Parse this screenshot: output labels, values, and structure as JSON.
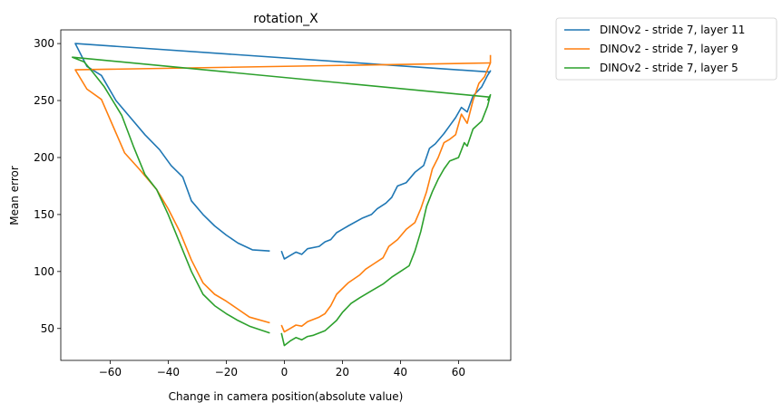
{
  "chart_data": {
    "type": "line",
    "title": "rotation_X",
    "xlabel": "Change in camera position(absolute value)",
    "ylabel": "Mean error",
    "xlim": [
      -77,
      78
    ],
    "ylim": [
      22,
      312
    ],
    "xticks": [
      -60,
      -40,
      -20,
      0,
      20,
      40,
      60
    ],
    "xtick_labels": [
      "−60",
      "−40",
      "−20",
      "0",
      "20",
      "40",
      "60"
    ],
    "yticks": [
      50,
      100,
      150,
      200,
      250,
      300
    ],
    "ytick_labels": [
      "50",
      "100",
      "150",
      "200",
      "250",
      "300"
    ],
    "grid": false,
    "legend_position": "outside-top-right",
    "series": [
      {
        "name": "DINOv2 - stride 7, layer 11",
        "color": "#1f77b4",
        "segments": [
          [
            [
              71,
              275
            ],
            [
              -72,
              300
            ],
            [
              -68,
              280
            ],
            [
              -63,
              272
            ],
            [
              -58,
              250
            ],
            [
              -53,
              235
            ],
            [
              -48,
              220
            ],
            [
              -43,
              207
            ],
            [
              -39,
              193
            ],
            [
              -35,
              183
            ],
            [
              -32,
              162
            ],
            [
              -28,
              150
            ],
            [
              -24,
              140
            ],
            [
              -20,
              132
            ],
            [
              -16,
              125
            ],
            [
              -11,
              119
            ],
            [
              -5,
              118
            ]
          ],
          [
            [
              -1,
              118
            ],
            [
              0,
              111
            ],
            [
              2,
              114
            ],
            [
              4,
              117
            ],
            [
              6,
              115
            ],
            [
              8,
              120
            ],
            [
              12,
              122
            ],
            [
              14,
              126
            ],
            [
              16,
              128
            ],
            [
              18,
              134
            ],
            [
              22,
              140
            ],
            [
              27,
              147
            ],
            [
              30,
              150
            ],
            [
              32,
              155
            ],
            [
              35,
              160
            ],
            [
              37,
              165
            ],
            [
              39,
              175
            ],
            [
              42,
              178
            ],
            [
              45,
              187
            ],
            [
              48,
              193
            ],
            [
              50,
              208
            ],
            [
              52,
              212
            ],
            [
              55,
              221
            ],
            [
              57,
              228
            ],
            [
              59,
              235
            ],
            [
              61,
              244
            ],
            [
              63,
              240
            ],
            [
              65,
              254
            ],
            [
              68,
              262
            ],
            [
              70,
              272
            ],
            [
              71,
              276
            ],
            [
              70,
              272
            ]
          ]
        ]
      },
      {
        "name": "DINOv2 - stride 7, layer 9",
        "color": "#ff7f0e",
        "segments": [
          [
            [
              71,
              283
            ],
            [
              -72,
              277
            ],
            [
              -68,
              260
            ],
            [
              -63,
              251
            ],
            [
              -55,
              204
            ],
            [
              -50,
              190
            ],
            [
              -44,
              172
            ],
            [
              -40,
              155
            ],
            [
              -36,
              135
            ],
            [
              -32,
              110
            ],
            [
              -28,
              90
            ],
            [
              -24,
              80
            ],
            [
              -20,
              74
            ],
            [
              -16,
              67
            ],
            [
              -12,
              60
            ],
            [
              -5,
              55
            ]
          ],
          [
            [
              -1,
              53
            ],
            [
              0,
              47
            ],
            [
              2,
              50
            ],
            [
              4,
              53
            ],
            [
              6,
              52
            ],
            [
              8,
              56
            ],
            [
              12,
              60
            ],
            [
              14,
              63
            ],
            [
              16,
              70
            ],
            [
              18,
              80
            ],
            [
              22,
              90
            ],
            [
              26,
              97
            ],
            [
              28,
              102
            ],
            [
              31,
              107
            ],
            [
              34,
              112
            ],
            [
              36,
              122
            ],
            [
              39,
              128
            ],
            [
              42,
              137
            ],
            [
              45,
              143
            ],
            [
              47,
              155
            ],
            [
              49,
              170
            ],
            [
              51,
              190
            ],
            [
              53,
              200
            ],
            [
              55,
              213
            ],
            [
              57,
              216
            ],
            [
              59,
              220
            ],
            [
              61,
              238
            ],
            [
              63,
              230
            ],
            [
              65,
              250
            ],
            [
              67,
              265
            ],
            [
              69,
              271
            ],
            [
              71,
              283
            ],
            [
              71,
              290
            ]
          ]
        ]
      },
      {
        "name": "DINOv2 - stride 7, layer 5",
        "color": "#2ca02c",
        "segments": [
          [
            [
              71,
              253
            ],
            [
              -73,
              288
            ],
            [
              -69,
              284
            ],
            [
              -66,
              275
            ],
            [
              -62,
              262
            ],
            [
              -56,
              237
            ],
            [
              -52,
              210
            ],
            [
              -48,
              185
            ],
            [
              -44,
              172
            ],
            [
              -40,
              150
            ],
            [
              -36,
              125
            ],
            [
              -32,
              100
            ],
            [
              -28,
              80
            ],
            [
              -24,
              70
            ],
            [
              -20,
              63
            ],
            [
              -16,
              57
            ],
            [
              -12,
              52
            ],
            [
              -5,
              46
            ]
          ],
          [
            [
              -1,
              46
            ],
            [
              0,
              35
            ],
            [
              2,
              39
            ],
            [
              4,
              42
            ],
            [
              6,
              40
            ],
            [
              8,
              43
            ],
            [
              10,
              44
            ],
            [
              14,
              48
            ],
            [
              18,
              57
            ],
            [
              20,
              64
            ],
            [
              23,
              72
            ],
            [
              26,
              77
            ],
            [
              30,
              83
            ],
            [
              34,
              89
            ],
            [
              37,
              95
            ],
            [
              40,
              100
            ],
            [
              43,
              105
            ],
            [
              45,
              118
            ],
            [
              47,
              135
            ],
            [
              49,
              157
            ],
            [
              51,
              170
            ],
            [
              53,
              181
            ],
            [
              55,
              190
            ],
            [
              57,
              197
            ],
            [
              60,
              200
            ],
            [
              62,
              213
            ],
            [
              63,
              210
            ],
            [
              65,
              225
            ],
            [
              68,
              232
            ],
            [
              70,
              245
            ],
            [
              71,
              255
            ],
            [
              70,
              250
            ]
          ]
        ]
      }
    ]
  }
}
